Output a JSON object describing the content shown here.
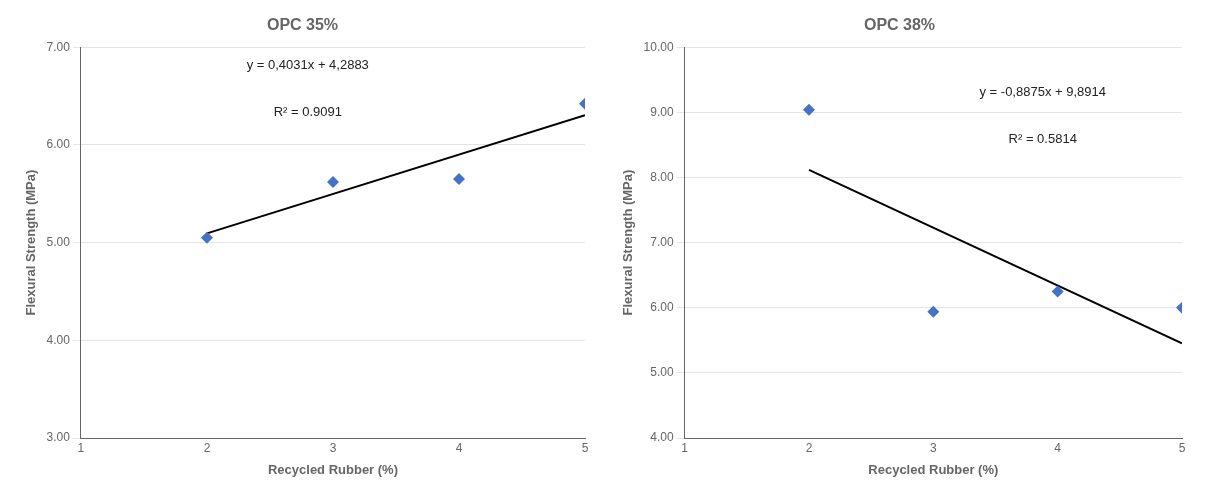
{
  "chart_data": [
    {
      "type": "scatter",
      "title": "OPC 35%",
      "x_label": "Recycled Rubber (%)",
      "y_label": "Flexural Strength (MPa)",
      "xlim": [
        1,
        5
      ],
      "xticks": [
        1,
        2,
        3,
        4,
        5
      ],
      "ylim": [
        3.0,
        7.0
      ],
      "yticks": [
        {
          "value": 3.0,
          "label": "3.00"
        },
        {
          "value": 4.0,
          "label": "4.00"
        },
        {
          "value": 5.0,
          "label": "5.00"
        },
        {
          "value": 6.0,
          "label": "6.00"
        },
        {
          "value": 7.0,
          "label": "7.00"
        }
      ],
      "grid": "y",
      "annotations": [
        "y = 0,4031x + 4,2883",
        "R² = 0.9091"
      ],
      "series": [
        {
          "type": "scatter",
          "color": "#4472C4",
          "marker": "diamond",
          "x": [
            2,
            3,
            4,
            5
          ],
          "values": [
            5.05,
            5.62,
            5.65,
            6.42
          ]
        },
        {
          "type": "line",
          "color": "black",
          "line_style": "solid",
          "x": [
            2.0,
            5.0
          ],
          "values": [
            5.0945,
            6.3038
          ]
        }
      ]
    },
    {
      "type": "scatter",
      "title": "OPC 38%",
      "x_label": "Recycled Rubber (%)",
      "y_label": "Flexural Strength (MPa)",
      "xlim": [
        1,
        5
      ],
      "xticks": [
        1,
        2,
        3,
        4,
        5
      ],
      "ylim": [
        4.0,
        10.0
      ],
      "yticks": [
        {
          "value": 4.0,
          "label": "4.00"
        },
        {
          "value": 5.0,
          "label": "5.00"
        },
        {
          "value": 6.0,
          "label": "6.00"
        },
        {
          "value": 7.0,
          "label": "7.00"
        },
        {
          "value": 8.0,
          "label": "8.00"
        },
        {
          "value": 9.0,
          "label": "9.00"
        },
        {
          "value": 10.0,
          "label": "10.00"
        }
      ],
      "grid": "y",
      "annotations": [
        "y = -0,8875x + 9,8914",
        "R² = 0.5814"
      ],
      "series": [
        {
          "type": "scatter",
          "color": "#4472C4",
          "marker": "diamond",
          "x": [
            2,
            3,
            4,
            5
          ],
          "values": [
            9.04,
            5.94,
            6.25,
            6.0
          ]
        },
        {
          "type": "line",
          "color": "black",
          "line_style": "solid",
          "x": [
            2.0,
            5.0
          ],
          "values": [
            8.1164,
            5.4539
          ]
        }
      ]
    }
  ]
}
